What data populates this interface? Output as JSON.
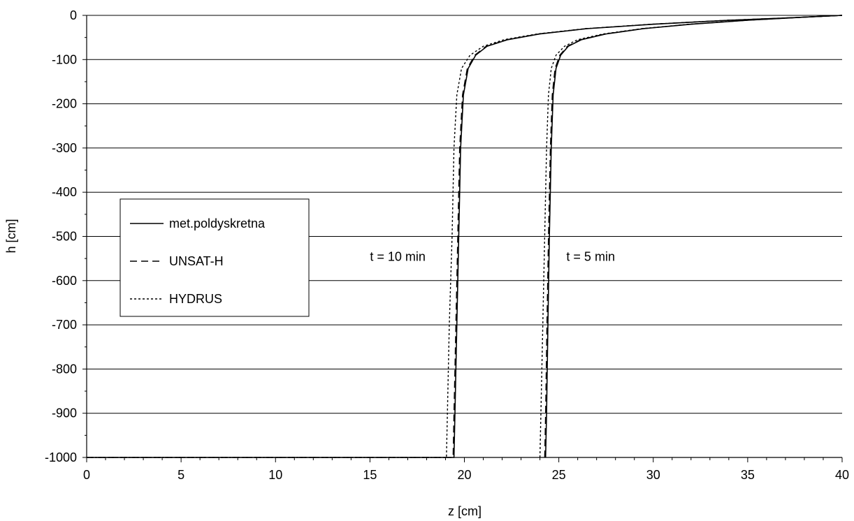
{
  "chart_data": {
    "type": "line",
    "xlabel": "z [cm]",
    "ylabel": "h [cm]",
    "xlim": [
      0,
      40
    ],
    "ylim": [
      -1000,
      0
    ],
    "x_ticks": [
      "0",
      "5",
      "10",
      "15",
      "20",
      "25",
      "30",
      "35",
      "40"
    ],
    "y_ticks": [
      "0",
      "-100",
      "-200",
      "-300",
      "-400",
      "-500",
      "-600",
      "-700",
      "-800",
      "-900",
      "-1000"
    ],
    "grid": "horizontal",
    "legend_position": "middle-left",
    "series": [
      {
        "name": "met.poldyskretna",
        "style": "solid",
        "curves": [
          {
            "x": [
              0,
              19.45,
              19.5,
              19.6,
              19.7,
              19.8,
              19.95,
              20.2,
              20.6,
              21.2,
              22.3,
              24.0,
              26.5,
              30.0,
              34.0,
              37.5,
              40.0
            ],
            "y": [
              -1000,
              -1000,
              -900,
              -700,
              -500,
              -300,
              -180,
              -120,
              -90,
              -70,
              -55,
              -42,
              -30,
              -20,
              -11,
              -5,
              0
            ]
          },
          {
            "x": [
              24.3,
              24.35,
              24.42,
              24.5,
              24.6,
              24.7,
              24.85,
              25.1,
              25.5,
              26.2,
              27.5,
              29.5,
              32.0,
              35.0,
              38.0,
              40.0
            ],
            "y": [
              -1000,
              -900,
              -700,
              -500,
              -300,
              -180,
              -120,
              -90,
              -70,
              -55,
              -42,
              -30,
              -20,
              -11,
              -4,
              0
            ]
          }
        ]
      },
      {
        "name": "UNSAT-H",
        "style": "dashed",
        "curves": [
          {
            "x": [
              0,
              19.4,
              19.45,
              19.55,
              19.65,
              19.75,
              19.9,
              20.15,
              20.55,
              21.15,
              22.25,
              23.95,
              26.45,
              29.95,
              33.95,
              37.5,
              40.0
            ],
            "y": [
              -1000,
              -1000,
              -900,
              -700,
              -500,
              -300,
              -180,
              -120,
              -90,
              -70,
              -55,
              -42,
              -30,
              -20,
              -11,
              -5,
              0
            ]
          },
          {
            "x": [
              24.25,
              24.3,
              24.37,
              24.45,
              24.55,
              24.65,
              24.8,
              25.05,
              25.45,
              26.15,
              27.45,
              29.45,
              31.95,
              34.95,
              38.0,
              40.0
            ],
            "y": [
              -1000,
              -900,
              -700,
              -500,
              -300,
              -180,
              -120,
              -90,
              -70,
              -55,
              -42,
              -30,
              -20,
              -11,
              -4,
              0
            ]
          }
        ]
      },
      {
        "name": "HYDRUS",
        "style": "dotted",
        "curves": [
          {
            "x": [
              0,
              19.05,
              19.1,
              19.2,
              19.35,
              19.45,
              19.6,
              19.85,
              20.3,
              21.0,
              22.1,
              23.85,
              26.4,
              29.9,
              33.9,
              37.5,
              40.0
            ],
            "y": [
              -1000,
              -1000,
              -900,
              -700,
              -500,
              -300,
              -180,
              -120,
              -90,
              -70,
              -55,
              -42,
              -30,
              -20,
              -11,
              -5,
              0
            ]
          },
          {
            "x": [
              24.0,
              24.05,
              24.15,
              24.25,
              24.35,
              24.45,
              24.6,
              24.85,
              25.3,
              26.0,
              27.35,
              29.4,
              31.9,
              34.9,
              38.0,
              40.0
            ],
            "y": [
              -1000,
              -900,
              -700,
              -500,
              -300,
              -180,
              -120,
              -90,
              -70,
              -55,
              -42,
              -30,
              -20,
              -11,
              -4,
              0
            ]
          }
        ]
      }
    ],
    "annotations": [
      {
        "text": "t = 10 min",
        "x": 15.0,
        "y": -555
      },
      {
        "text": "t = 5 min",
        "x": 25.4,
        "y": -555
      }
    ]
  }
}
